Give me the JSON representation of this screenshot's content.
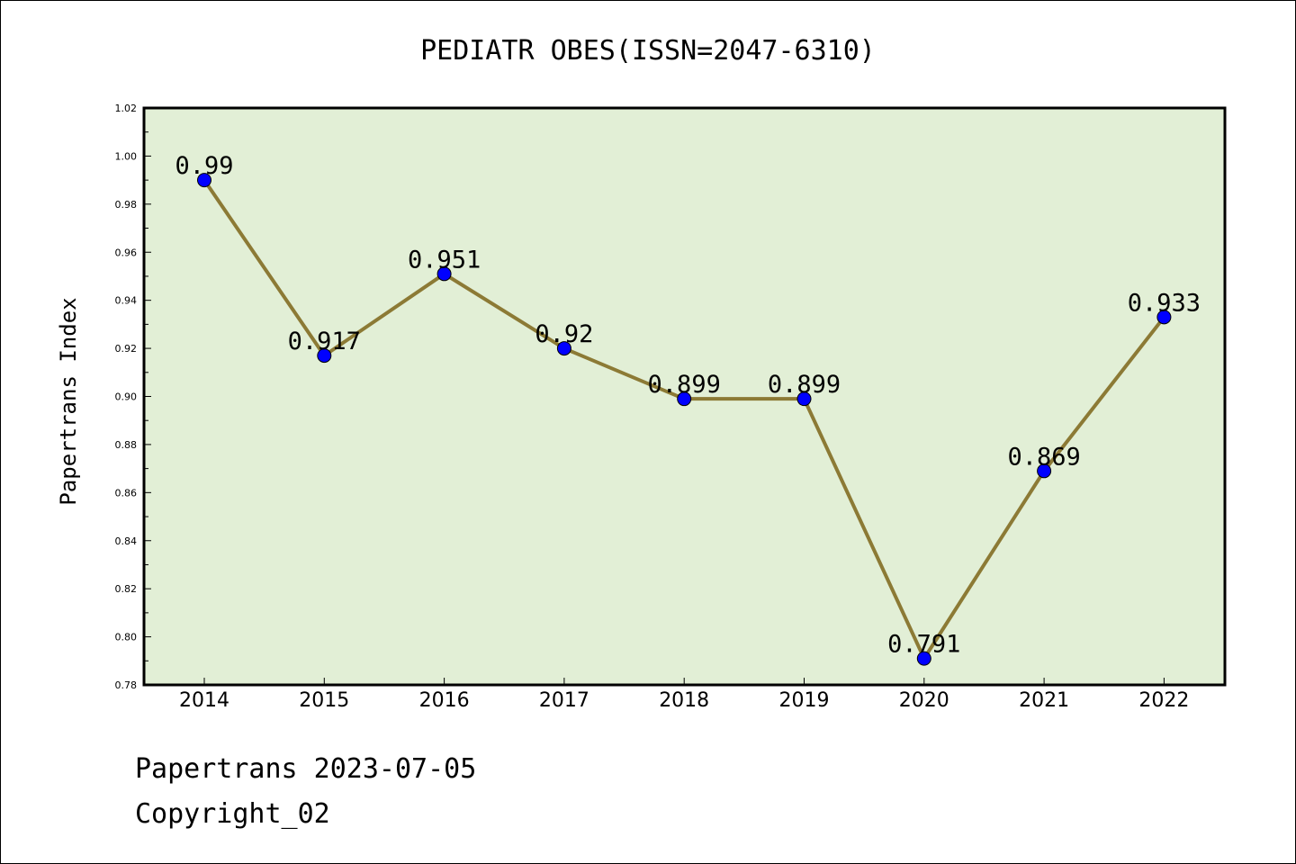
{
  "chart_data": {
    "type": "line",
    "title": "PEDIATR OBES(ISSN=2047-6310)",
    "xlabel": "",
    "ylabel": "Papertrans Index",
    "categories": [
      "2014",
      "2015",
      "2016",
      "2017",
      "2018",
      "2019",
      "2020",
      "2021",
      "2022"
    ],
    "series": [
      {
        "name": "Papertrans Index",
        "values": [
          0.99,
          0.917,
          0.951,
          0.92,
          0.899,
          0.899,
          0.791,
          0.869,
          0.933
        ],
        "labels": [
          "0.99",
          "0.917",
          "0.951",
          "0.92",
          "0.899",
          "0.899",
          "0.791",
          "0.869",
          "0.933"
        ]
      }
    ],
    "ylim": [
      0.78,
      1.02
    ],
    "yticks": [
      0.78,
      0.8,
      0.82,
      0.84,
      0.86,
      0.88,
      0.9,
      0.92,
      0.94,
      0.96,
      0.98,
      1.0,
      1.02
    ],
    "ytick_labels": [
      "0.78",
      "0.80",
      "0.82",
      "0.84",
      "0.86",
      "0.88",
      "0.90",
      "0.92",
      "0.94",
      "0.96",
      "0.98",
      "1.00",
      "1.02"
    ],
    "grid": false
  },
  "colors": {
    "plot_background": "#e2efd6",
    "line": "#8c7a35",
    "marker": "#0000ff",
    "axes": "#000000"
  },
  "footer": {
    "line1": "Papertrans 2023-07-05",
    "line2": "Copyright_02"
  }
}
